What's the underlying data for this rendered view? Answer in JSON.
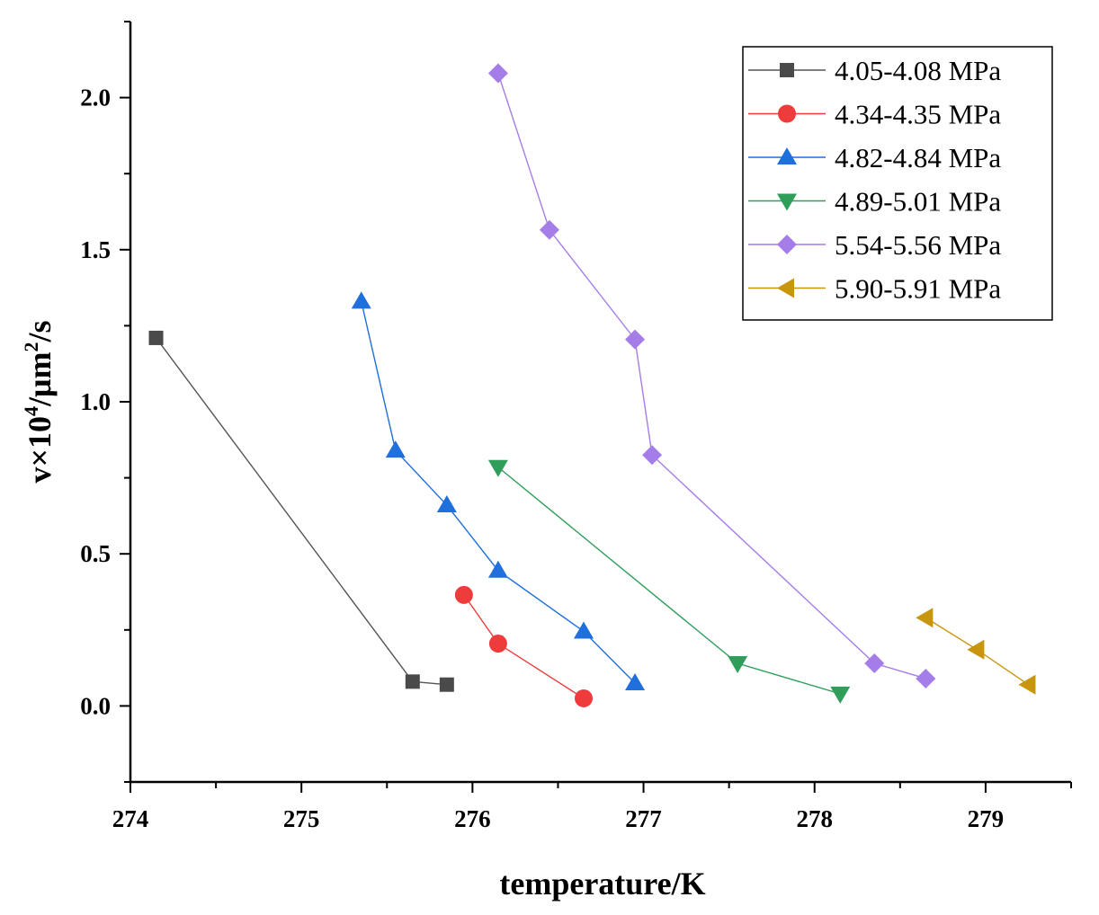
{
  "chart_data": {
    "type": "line",
    "title": "",
    "xlabel": "temperature/K",
    "ylabel_parts": {
      "pre": "v×10",
      "sup1": "4",
      "mid": "/μm",
      "sup2": "2",
      "post": "/s"
    },
    "xlim": [
      274,
      279.5
    ],
    "ylim": [
      -0.25,
      2.25
    ],
    "xticks": [
      274,
      275,
      276,
      277,
      278,
      279
    ],
    "xtick_labels": [
      "274",
      "275",
      "276",
      "277",
      "278",
      "279"
    ],
    "yticks": [
      0.0,
      0.5,
      1.0,
      1.5,
      2.0
    ],
    "ytick_labels": [
      "0.0",
      "0.5",
      "1.0",
      "1.5",
      "2.0"
    ],
    "legend_position": "top-right",
    "series": [
      {
        "name": "4.05-4.08 MPa",
        "marker": "square",
        "color": "#4a4a4a",
        "line_color": "#555555",
        "x": [
          274.15,
          275.65,
          275.85
        ],
        "y": [
          1.21,
          0.08,
          0.07
        ]
      },
      {
        "name": "4.34-4.35 MPa",
        "marker": "circle",
        "color": "#ee3b3b",
        "line_color": "#ee3b3b",
        "x": [
          275.95,
          276.15,
          276.65
        ],
        "y": [
          0.365,
          0.205,
          0.025
        ]
      },
      {
        "name": "4.82-4.84 MPa",
        "marker": "triangle-up",
        "color": "#1f6fdc",
        "line_color": "#1f6fdc",
        "x": [
          275.35,
          275.55,
          275.85,
          276.15,
          276.65,
          276.95
        ],
        "y": [
          1.33,
          0.84,
          0.66,
          0.445,
          0.245,
          0.075
        ]
      },
      {
        "name": "4.89-5.01 MPa",
        "marker": "triangle-down",
        "color": "#2e9e5a",
        "line_color": "#2e9e5a",
        "x": [
          276.15,
          277.55,
          278.15
        ],
        "y": [
          0.785,
          0.14,
          0.04
        ]
      },
      {
        "name": "5.54-5.56 MPa",
        "marker": "diamond",
        "color": "#a57de8",
        "line_color": "#a57de8",
        "x": [
          276.15,
          276.45,
          276.95,
          277.05,
          278.35,
          278.65
        ],
        "y": [
          2.08,
          1.565,
          1.205,
          0.825,
          0.14,
          0.09
        ]
      },
      {
        "name": "5.90-5.91 MPa",
        "marker": "triangle-left",
        "color": "#c8960c",
        "line_color": "#c8960c",
        "x": [
          278.65,
          278.95,
          279.25
        ],
        "y": [
          0.29,
          0.185,
          0.07
        ]
      }
    ]
  }
}
